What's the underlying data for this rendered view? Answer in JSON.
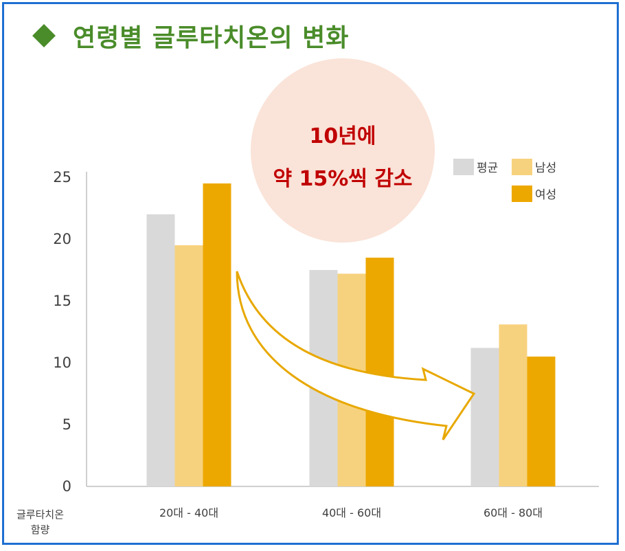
{
  "title": "연령별 글루타치온의 변화",
  "callout": {
    "line1": "10년에",
    "line2": "약 15%씩 감소"
  },
  "colors": {
    "frame": "#1e6fd1",
    "title": "#4a8c2a",
    "callout_bg": "#fae3d8",
    "callout_text": "#c00000",
    "arrow": "#e8a800"
  },
  "chart_data": {
    "type": "bar",
    "categories": [
      "20대 - 40대",
      "40대 - 60대",
      "60대 - 80대"
    ],
    "series": [
      {
        "name": "평균",
        "values": [
          22,
          17.5,
          11.2
        ],
        "color": "#d9d9d9"
      },
      {
        "name": "남성",
        "values": [
          19.5,
          17.2,
          13.1
        ],
        "color": "#f7d27e"
      },
      {
        "name": "여성",
        "values": [
          24.5,
          18.5,
          10.5
        ],
        "color": "#eda800"
      }
    ],
    "ylim": [
      0,
      25
    ],
    "yticks": [
      0,
      5,
      10,
      15,
      20,
      25
    ],
    "xlabel_line1": "글루타치온",
    "xlabel_line2": "함량",
    "legend_position": "top-right",
    "grid": false
  }
}
